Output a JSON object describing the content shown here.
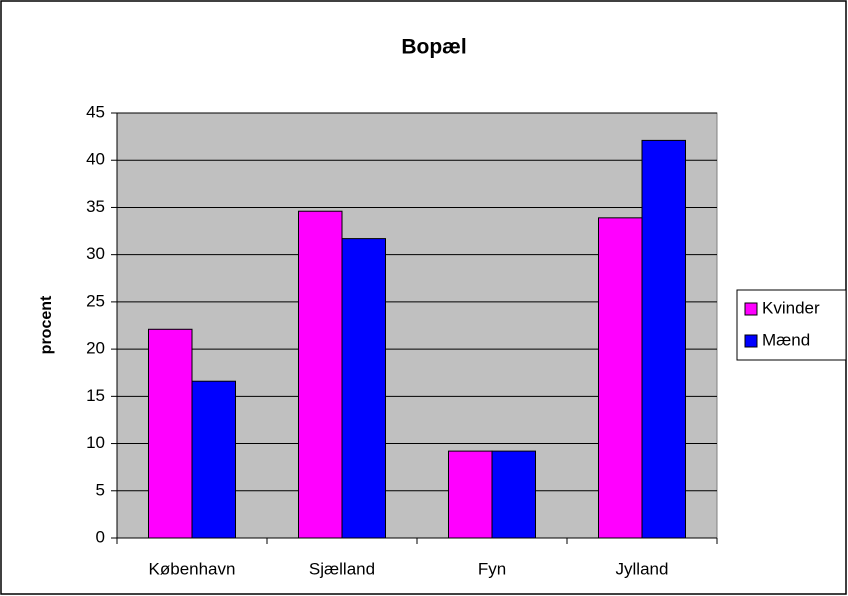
{
  "chart_data": {
    "type": "bar",
    "title": "Bopæl",
    "y_label": "procent",
    "categories": [
      "København",
      "Sjælland",
      "Fyn",
      "Jylland"
    ],
    "series": [
      {
        "name": "Kvinder",
        "color": "#ff00ff",
        "values": [
          22.1,
          34.6,
          9.2,
          33.9
        ]
      },
      {
        "name": "Mænd",
        "color": "#0000ff",
        "values": [
          16.6,
          31.7,
          9.2,
          42.1
        ]
      }
    ],
    "ylim": [
      0,
      45
    ],
    "yticks": [
      0,
      5,
      10,
      15,
      20,
      25,
      30,
      35,
      40,
      45
    ],
    "grid": true,
    "legend": "right",
    "plot_background": "#c0c0c0"
  }
}
